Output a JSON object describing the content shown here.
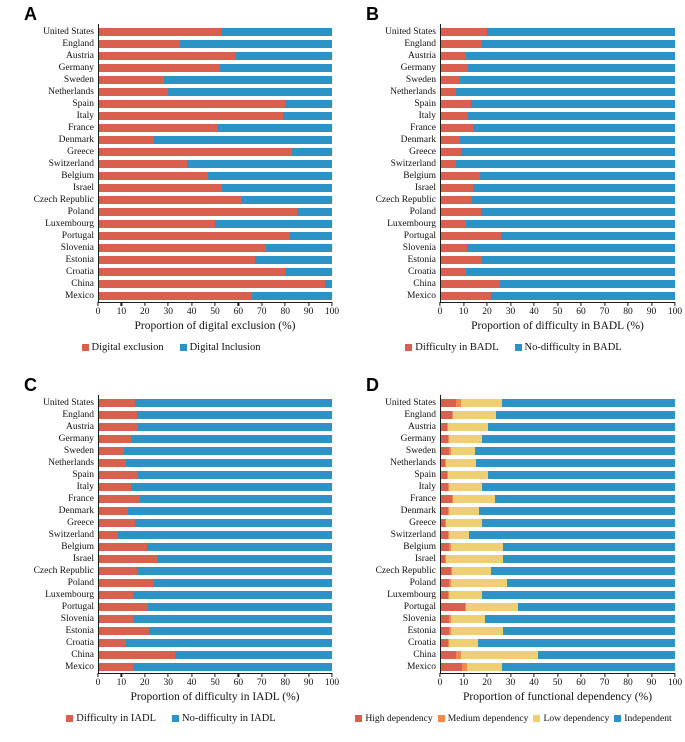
{
  "figure": {
    "background": "#ffffff"
  },
  "colors": {
    "red": "#D9604E",
    "blue": "#2B93C5",
    "orange": "#F08A4B",
    "yellow": "#F0CF74",
    "axis": "#1a1a1a"
  },
  "chart_data": [
    {
      "panel_label": "A",
      "type": "bar",
      "stacked": true,
      "orientation": "horizontal",
      "title": "",
      "xlabel": "Proportion of digital exclusion (%)",
      "ylabel": "",
      "xlim": [
        0,
        100
      ],
      "xticks": [
        0,
        10,
        20,
        30,
        40,
        50,
        60,
        70,
        80,
        90,
        100
      ],
      "grid": false,
      "legend_position": "bottom",
      "categories": [
        "United States",
        "England",
        "Austria",
        "Germany",
        "Sweden",
        "Netherlands",
        "Spain",
        "Italy",
        "France",
        "Denmark",
        "Greece",
        "Switzerland",
        "Belgium",
        "Israel",
        "Czech Republic",
        "Poland",
        "Luxembourg",
        "Portugal",
        "Slovenia",
        "Estonia",
        "Croatia",
        "China",
        "Mexico"
      ],
      "series": [
        {
          "name": "Digital exclusion",
          "color": "#D9604E",
          "values": [
            53,
            35,
            59,
            52,
            28,
            30,
            80,
            79,
            51,
            24,
            83,
            38,
            47,
            53,
            61,
            85,
            50,
            82,
            72,
            67,
            80,
            97,
            66
          ]
        },
        {
          "name": "Digital Inclusion",
          "color": "#2B93C5",
          "values": [
            47,
            65,
            41,
            48,
            72,
            70,
            20,
            21,
            49,
            76,
            17,
            62,
            53,
            47,
            39,
            15,
            50,
            18,
            28,
            33,
            20,
            3,
            34
          ]
        }
      ]
    },
    {
      "panel_label": "B",
      "type": "bar",
      "stacked": true,
      "orientation": "horizontal",
      "title": "",
      "xlabel": "Proportion of difficulty in BADL (%)",
      "ylabel": "",
      "xlim": [
        0,
        100
      ],
      "xticks": [
        0,
        10,
        20,
        30,
        40,
        50,
        60,
        70,
        80,
        90,
        100
      ],
      "grid": false,
      "legend_position": "bottom",
      "categories": [
        "United States",
        "England",
        "Austria",
        "Germany",
        "Sweden",
        "Netherlands",
        "Spain",
        "Italy",
        "France",
        "Denmark",
        "Greece",
        "Switzerland",
        "Belgium",
        "Israel",
        "Czech Republic",
        "Poland",
        "Luxembourg",
        "Portugal",
        "Slovenia",
        "Estonia",
        "Croatia",
        "China",
        "Mexico"
      ],
      "series": [
        {
          "name": "Difficulty in BADL",
          "color": "#D9604E",
          "values": [
            20,
            18,
            11,
            12,
            8.5,
            7,
            13,
            12,
            14,
            8.5,
            9,
            7,
            17,
            14,
            13.5,
            17.5,
            11,
            26,
            11.5,
            18,
            11,
            25.5,
            21.5
          ]
        },
        {
          "name": "No-difficulty in BADL",
          "color": "#2B93C5",
          "values": [
            80,
            82,
            89,
            88,
            91.5,
            93,
            87,
            88,
            86,
            91.5,
            91,
            93,
            83,
            86,
            86.5,
            82.5,
            89,
            74,
            88.5,
            82,
            89,
            74.5,
            78.5
          ]
        }
      ]
    },
    {
      "panel_label": "C",
      "type": "bar",
      "stacked": true,
      "orientation": "horizontal",
      "title": "",
      "xlabel": "Proportion of difficulty in IADL (%)",
      "ylabel": "",
      "xlim": [
        0,
        100
      ],
      "xticks": [
        0,
        10,
        20,
        30,
        40,
        50,
        60,
        70,
        80,
        90,
        100
      ],
      "grid": false,
      "legend_position": "bottom",
      "categories": [
        "United States",
        "England",
        "Austria",
        "Germany",
        "Sweden",
        "Netherlands",
        "Spain",
        "Italy",
        "France",
        "Denmark",
        "Greece",
        "Switzerland",
        "Belgium",
        "Israel",
        "Czech Republic",
        "Poland",
        "Luxembourg",
        "Portugal",
        "Slovenia",
        "Estonia",
        "Croatia",
        "China",
        "Mexico"
      ],
      "series": [
        {
          "name": "Difficulty in IADL",
          "color": "#D9604E",
          "values": [
            16,
            16.5,
            17,
            14,
            11,
            12,
            17,
            14,
            18,
            13,
            16,
            8.5,
            21,
            25,
            16.5,
            24,
            15,
            21.5,
            15,
            22,
            12,
            33,
            15
          ]
        },
        {
          "name": "No-difficulty in IADL",
          "color": "#2B93C5",
          "values": [
            84,
            83.5,
            83,
            86,
            89,
            88,
            83,
            86,
            82,
            87,
            84,
            91.5,
            79,
            75,
            83.5,
            76,
            85,
            78.5,
            85,
            78,
            88,
            67,
            85
          ]
        }
      ]
    },
    {
      "panel_label": "D",
      "type": "bar",
      "stacked": true,
      "orientation": "horizontal",
      "title": "",
      "xlabel": "Proportion of functional dependency (%)",
      "ylabel": "",
      "xlim": [
        0,
        100
      ],
      "xticks": [
        0,
        10,
        20,
        30,
        40,
        50,
        60,
        70,
        80,
        90,
        100
      ],
      "grid": false,
      "legend_position": "bottom",
      "categories": [
        "United States",
        "England",
        "Austria",
        "Germany",
        "Sweden",
        "Netherlands",
        "Spain",
        "Italy",
        "France",
        "Denmark",
        "Greece",
        "Switzerland",
        "Belgium",
        "Israel",
        "Czech Republic",
        "Poland",
        "Luxembourg",
        "Portugal",
        "Slovenia",
        "Estonia",
        "Croatia",
        "China",
        "Mexico"
      ],
      "series": [
        {
          "name": "High dependency",
          "color": "#D9604E",
          "values": [
            7,
            5,
            3,
            3.5,
            4,
            2,
            3,
            3.5,
            5,
            3.5,
            2,
            3.5,
            4,
            2,
            4.5,
            4,
            3.5,
            10.5,
            4,
            4,
            3.5,
            7,
            9.5
          ]
        },
        {
          "name": "Medium dependency",
          "color": "#F08A4B",
          "values": [
            2,
            0.5,
            0.5,
            0.5,
            0.5,
            0.5,
            0.5,
            0.5,
            0.5,
            0.5,
            0.5,
            0.5,
            0.5,
            0.5,
            0.5,
            0.5,
            0.5,
            0.5,
            0.5,
            0.5,
            0.5,
            2,
            2
          ]
        },
        {
          "name": "Low dependency",
          "color": "#F0CF74",
          "values": [
            17.5,
            18.5,
            17,
            14,
            10.5,
            13,
            17,
            14,
            18,
            12.5,
            15.5,
            8.5,
            22.5,
            24.5,
            16.5,
            24,
            14,
            22,
            14.5,
            22.5,
            12,
            32.5,
            15
          ]
        },
        {
          "name": "Independent",
          "color": "#2B93C5",
          "values": [
            73.5,
            76,
            79.5,
            82,
            85,
            84.5,
            79.5,
            82,
            76.5,
            83.5,
            82,
            87.5,
            73,
            73,
            78.5,
            71.5,
            82,
            67,
            81,
            73,
            84,
            58.5,
            73.5
          ]
        }
      ]
    }
  ]
}
